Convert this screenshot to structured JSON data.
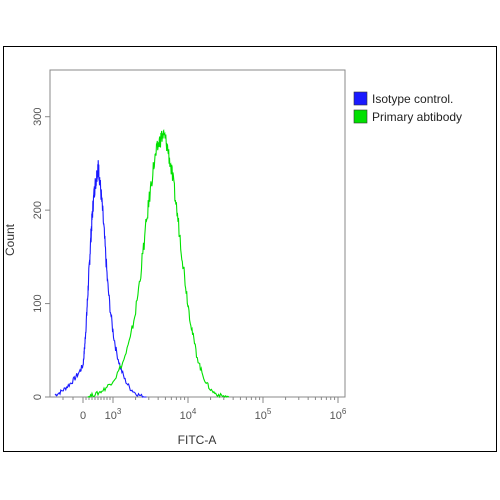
{
  "chart_data": {
    "type": "line",
    "title": "",
    "xlabel": "FITC-A",
    "ylabel": "Count",
    "x_scale": "biexponential",
    "xlim": [
      -300,
      1000000
    ],
    "ylim": [
      0,
      350
    ],
    "x_ticks": [
      {
        "value": 0,
        "base": "0",
        "exp": ""
      },
      {
        "value": 1000,
        "base": "10",
        "exp": "3"
      },
      {
        "value": 10000,
        "base": "10",
        "exp": "4"
      },
      {
        "value": 100000,
        "base": "10",
        "exp": "5"
      },
      {
        "value": 1000000,
        "base": "10",
        "exp": "6"
      }
    ],
    "y_ticks": [
      0,
      100,
      200,
      300
    ],
    "grid": false,
    "legend_position": "top-right",
    "series": [
      {
        "name": "Isotype control.",
        "color": "#1a1aff",
        "points": [
          [
            -280,
            2
          ],
          [
            -230,
            5
          ],
          [
            -180,
            9
          ],
          [
            -130,
            14
          ],
          [
            -80,
            20
          ],
          [
            -30,
            28
          ],
          [
            0,
            34
          ],
          [
            30,
            44
          ],
          [
            60,
            56
          ],
          [
            90,
            70
          ],
          [
            120,
            86
          ],
          [
            150,
            104
          ],
          [
            180,
            122
          ],
          [
            210,
            140
          ],
          [
            240,
            158
          ],
          [
            270,
            175
          ],
          [
            300,
            190
          ],
          [
            330,
            203
          ],
          [
            360,
            215
          ],
          [
            390,
            224
          ],
          [
            420,
            230
          ],
          [
            450,
            236
          ],
          [
            470,
            240
          ],
          [
            490,
            244
          ],
          [
            510,
            246
          ],
          [
            530,
            241
          ],
          [
            560,
            232
          ],
          [
            600,
            218
          ],
          [
            650,
            200
          ],
          [
            700,
            178
          ],
          [
            760,
            150
          ],
          [
            820,
            122
          ],
          [
            900,
            96
          ],
          [
            1000,
            70
          ],
          [
            1100,
            50
          ],
          [
            1250,
            32
          ],
          [
            1450,
            18
          ],
          [
            1700,
            9
          ],
          [
            2000,
            4
          ],
          [
            2400,
            1
          ],
          [
            2800,
            0
          ]
        ]
      },
      {
        "name": "Primary abtibody",
        "color": "#00e000",
        "points": [
          [
            150,
            0
          ],
          [
            300,
            2
          ],
          [
            500,
            4
          ],
          [
            700,
            8
          ],
          [
            900,
            14
          ],
          [
            1100,
            22
          ],
          [
            1400,
            40
          ],
          [
            1700,
            62
          ],
          [
            2000,
            92
          ],
          [
            2300,
            128
          ],
          [
            2600,
            165
          ],
          [
            2900,
            198
          ],
          [
            3200,
            226
          ],
          [
            3500,
            248
          ],
          [
            3800,
            262
          ],
          [
            4100,
            272
          ],
          [
            4400,
            278
          ],
          [
            4700,
            280
          ],
          [
            5000,
            276
          ],
          [
            5400,
            265
          ],
          [
            5800,
            250
          ],
          [
            6300,
            232
          ],
          [
            6900,
            208
          ],
          [
            7600,
            180
          ],
          [
            8400,
            150
          ],
          [
            9300,
            120
          ],
          [
            10300,
            92
          ],
          [
            11500,
            68
          ],
          [
            13000,
            46
          ],
          [
            15000,
            28
          ],
          [
            17500,
            15
          ],
          [
            20500,
            7
          ],
          [
            24000,
            3
          ],
          [
            29000,
            1
          ],
          [
            35000,
            0
          ]
        ]
      }
    ]
  }
}
